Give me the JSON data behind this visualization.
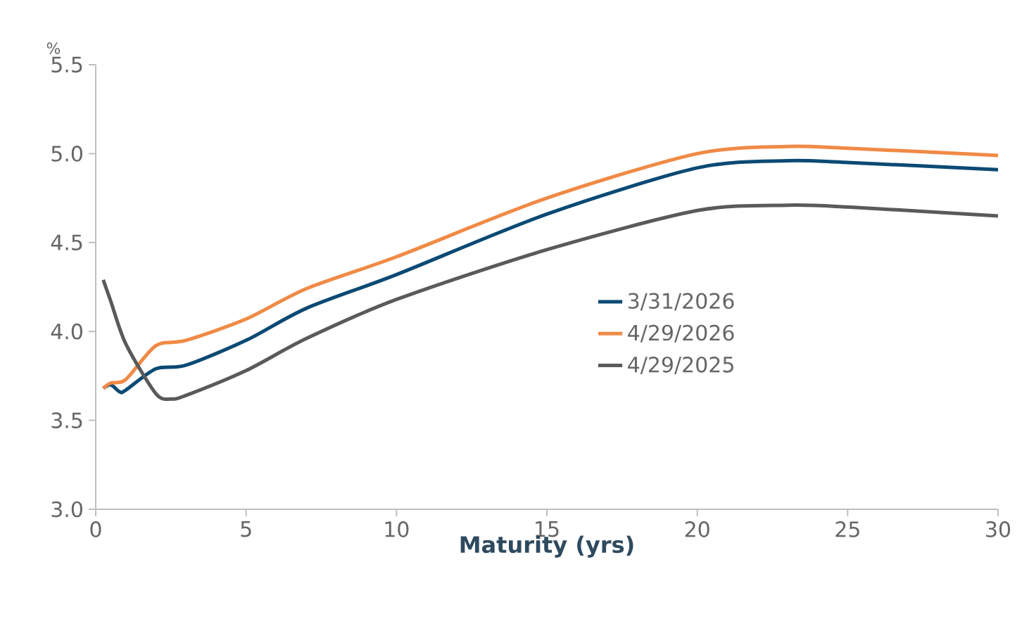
{
  "chart_data": {
    "type": "line",
    "ylabel": "%",
    "xlabel": "Maturity (yrs)",
    "xlim": [
      0,
      30
    ],
    "xticks": [
      0,
      5,
      10,
      15,
      20,
      25,
      30
    ],
    "ylim": [
      3.0,
      5.5
    ],
    "yticks": [
      {
        "value": 3.0,
        "label": "3.0"
      },
      {
        "value": 3.5,
        "label": "3.5"
      },
      {
        "value": 4.0,
        "label": "4.0"
      },
      {
        "value": 4.5,
        "label": "4.5"
      },
      {
        "value": 5.0,
        "label": "5.0"
      },
      {
        "value": 5.5,
        "label": "5.5"
      }
    ],
    "grid": false,
    "legend": "right",
    "marker": "none",
    "line_style": "solid",
    "series": [
      {
        "name": "3/31/2026",
        "color": "#0b4a74",
        "x": [
          0.25,
          0.5,
          0.8,
          1,
          2,
          3,
          5,
          7,
          10,
          15,
          20,
          23,
          25,
          30
        ],
        "values": [
          3.68,
          3.7,
          3.66,
          3.67,
          3.79,
          3.81,
          3.95,
          4.13,
          4.32,
          4.66,
          4.92,
          4.96,
          4.95,
          4.91
        ]
      },
      {
        "name": "4/29/2026",
        "color": "#f08a45",
        "x": [
          0.25,
          0.5,
          1,
          2,
          3,
          5,
          7,
          10,
          15,
          20,
          23,
          25,
          30
        ],
        "values": [
          3.68,
          3.71,
          3.73,
          3.92,
          3.95,
          4.07,
          4.24,
          4.42,
          4.75,
          5.0,
          5.04,
          5.03,
          4.99
        ]
      },
      {
        "name": "4/29/2025",
        "color": "#5a5a5a",
        "x": [
          0.25,
          0.5,
          1,
          2,
          2.5,
          3,
          5,
          7,
          10,
          15,
          20,
          23,
          25,
          30
        ],
        "values": [
          4.29,
          4.17,
          3.93,
          3.65,
          3.62,
          3.64,
          3.78,
          3.96,
          4.18,
          4.46,
          4.68,
          4.71,
          4.7,
          4.65
        ]
      }
    ]
  }
}
